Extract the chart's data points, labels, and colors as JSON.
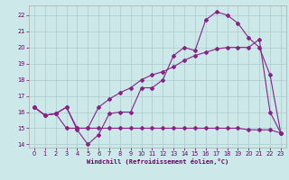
{
  "xlabel": "Windchill (Refroidissement éolien,°C)",
  "hours": [
    0,
    1,
    2,
    3,
    4,
    5,
    6,
    7,
    8,
    9,
    10,
    11,
    12,
    13,
    14,
    15,
    16,
    17,
    18,
    19,
    20,
    21,
    22,
    23
  ],
  "line1": [
    16.3,
    15.8,
    15.9,
    16.3,
    14.9,
    14.0,
    14.6,
    15.9,
    16.0,
    16.0,
    17.5,
    17.5,
    18.0,
    19.5,
    20.0,
    19.8,
    21.7,
    22.2,
    22.0,
    21.5,
    20.6,
    20.0,
    18.3,
    14.7
  ],
  "line2": [
    16.3,
    15.8,
    15.9,
    16.3,
    15.0,
    15.0,
    16.3,
    16.8,
    17.2,
    17.5,
    18.0,
    18.3,
    18.5,
    18.8,
    19.2,
    19.5,
    19.7,
    19.9,
    20.0,
    20.0,
    20.0,
    20.5,
    16.0,
    14.7
  ],
  "line3": [
    16.3,
    15.8,
    15.9,
    15.0,
    15.0,
    15.0,
    15.0,
    15.0,
    15.0,
    15.0,
    15.0,
    15.0,
    15.0,
    15.0,
    15.0,
    15.0,
    15.0,
    15.0,
    15.0,
    15.0,
    14.9,
    14.9,
    14.9,
    14.7
  ],
  "line_color": "#882288",
  "bg_color": "#cce8e8",
  "grid_color": "#aacccc",
  "ylim": [
    13.8,
    22.6
  ],
  "xlim": [
    -0.5,
    23.5
  ],
  "yticks": [
    14,
    15,
    16,
    17,
    18,
    19,
    20,
    21,
    22
  ],
  "xticks": [
    0,
    1,
    2,
    3,
    4,
    5,
    6,
    7,
    8,
    9,
    10,
    11,
    12,
    13,
    14,
    15,
    16,
    17,
    18,
    19,
    20,
    21,
    22,
    23
  ]
}
